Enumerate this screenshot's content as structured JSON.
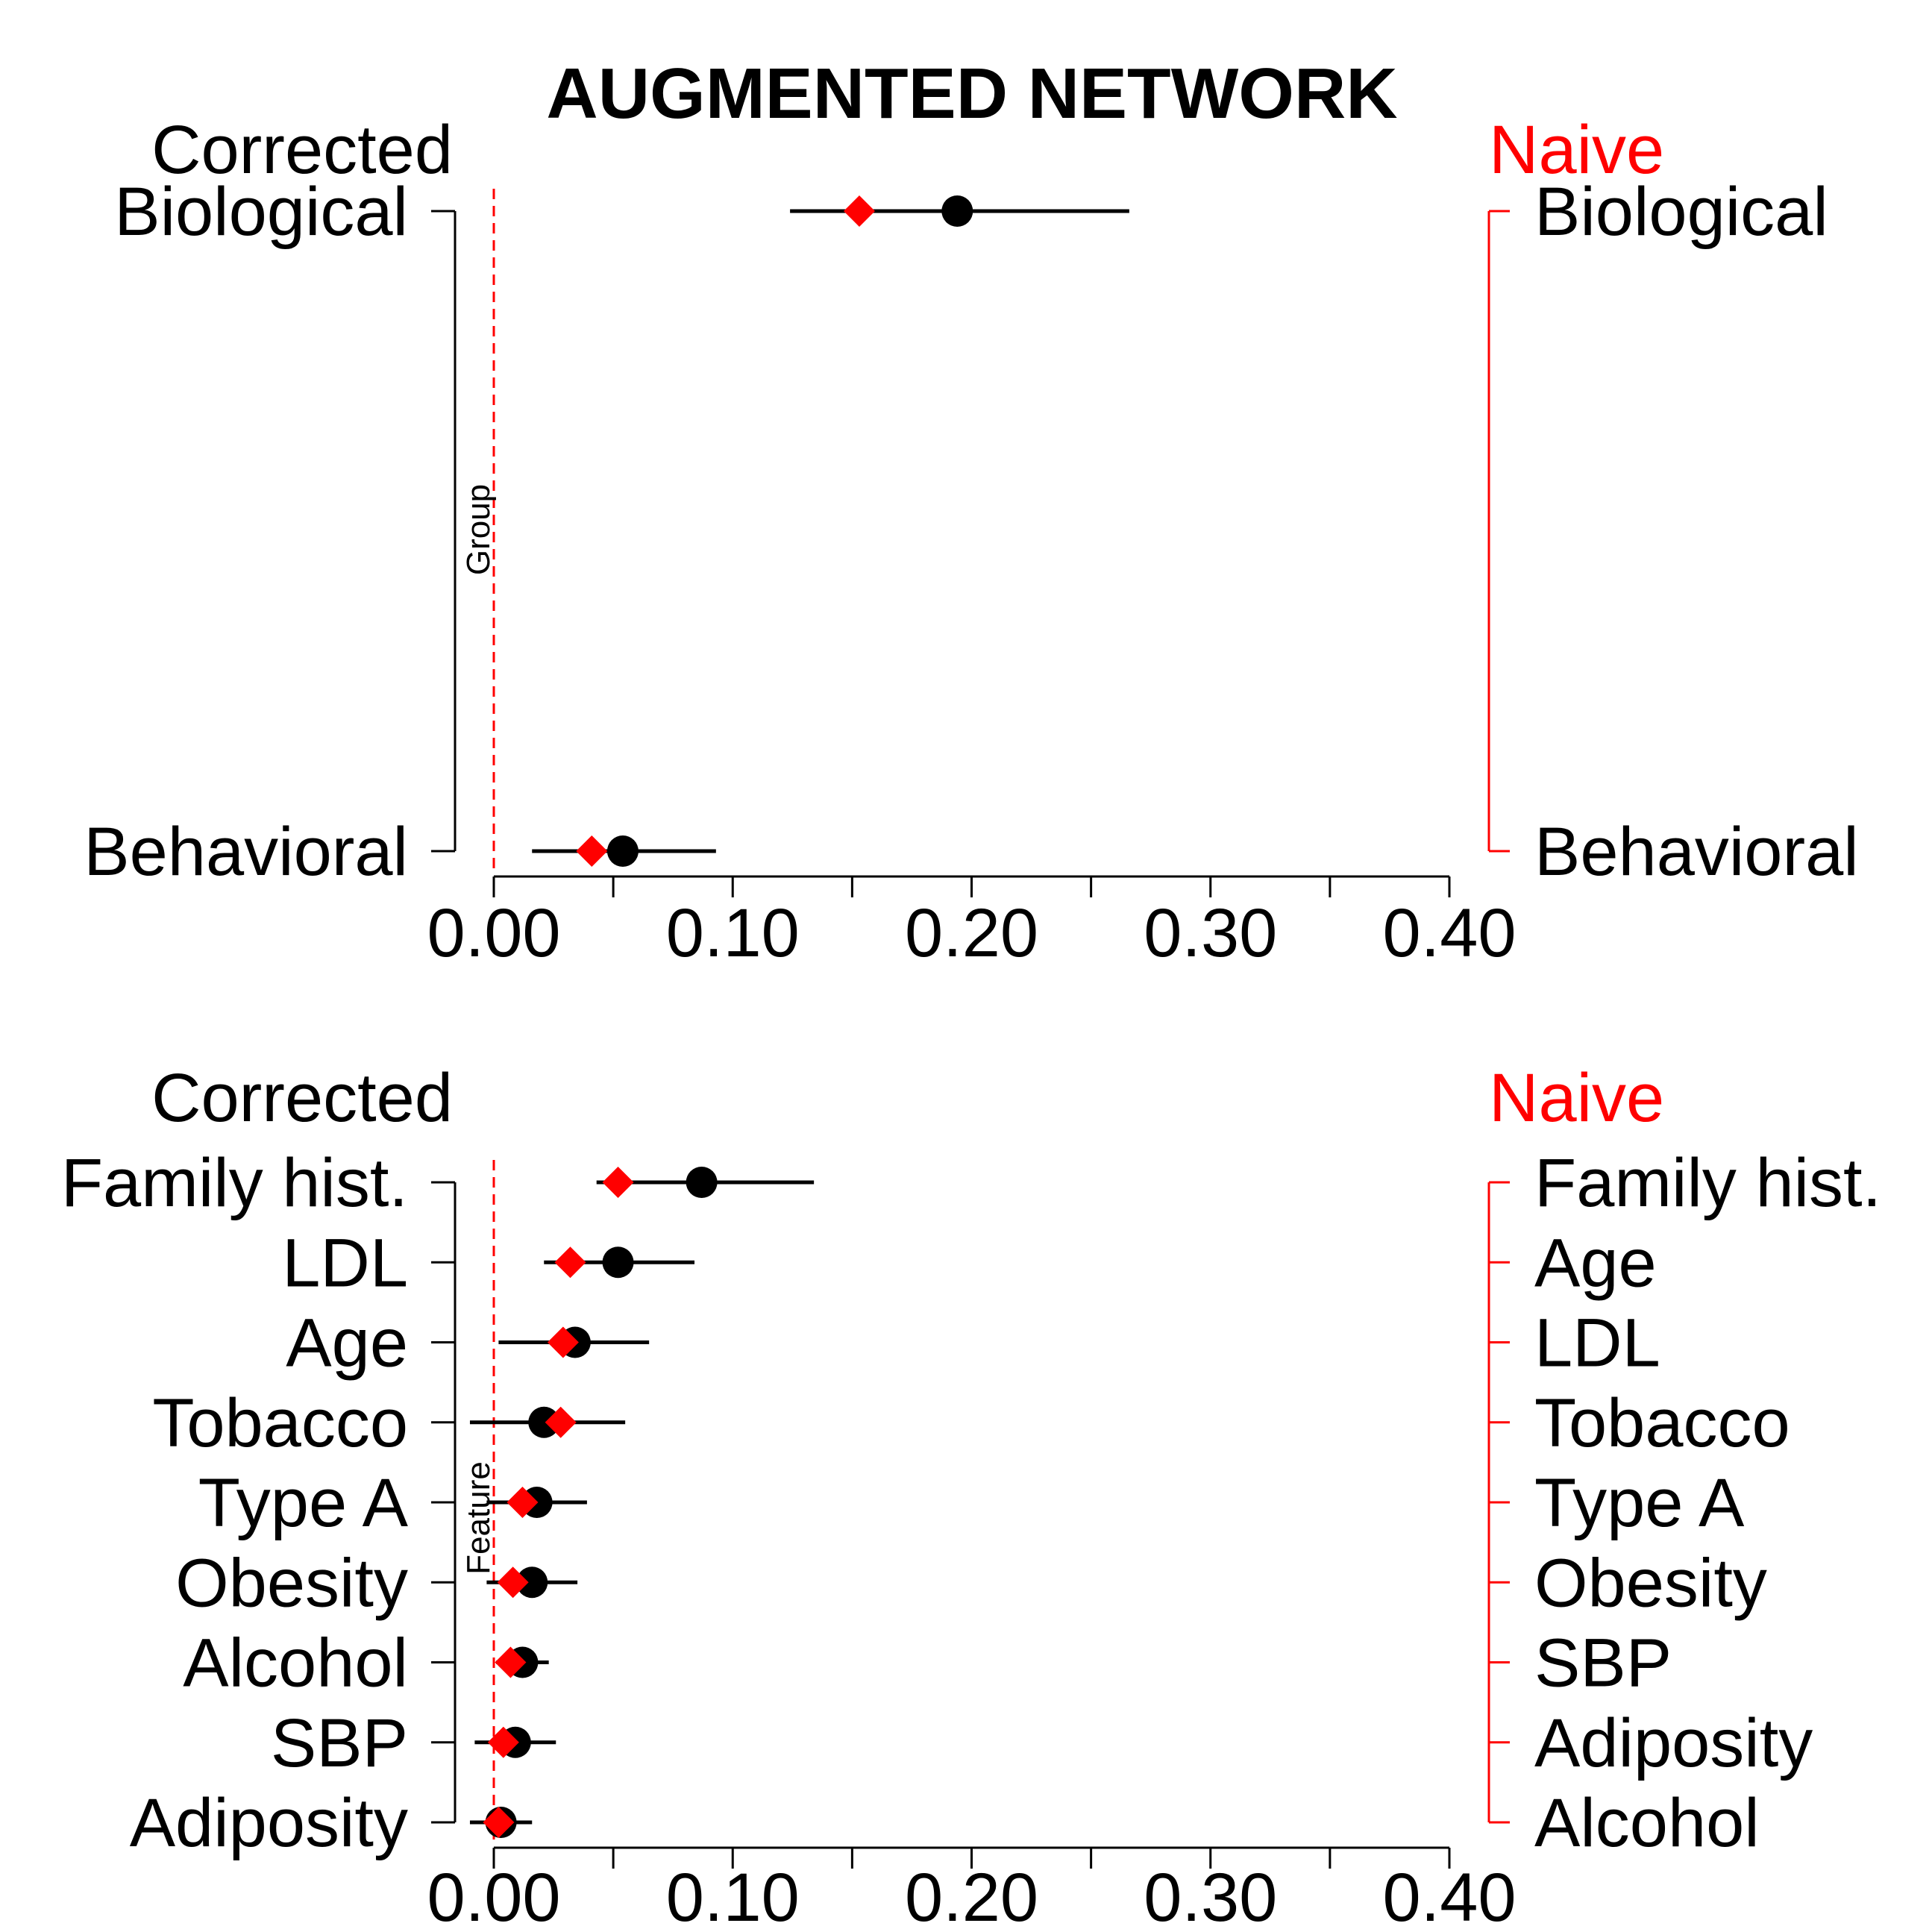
{
  "title": "AUGMENTED NETWORK",
  "colors": {
    "corrected": "#000000",
    "naive": "#ff0000",
    "reference_line": "#ff0000"
  },
  "chart_data": [
    {
      "type": "dot-whisker",
      "panel": "group",
      "left_header": "Corrected",
      "right_header": "Naive",
      "inner_label": "Group",
      "xlim": [
        0,
        0.4
      ],
      "x_ticks": [
        "0.00",
        "0.10",
        "0.20",
        "0.30",
        "0.40"
      ],
      "reference_line_x": 0,
      "left_categories": [
        "Biological",
        "Behavioral"
      ],
      "right_categories": [
        "Biological",
        "Behavioral"
      ],
      "series": [
        {
          "name": "Corrected",
          "marker": "circle",
          "values": [
            0.194,
            0.054
          ],
          "ci_low": [
            0.124,
            0.016
          ],
          "ci_high": [
            0.266,
            0.093
          ]
        },
        {
          "name": "Naive",
          "marker": "diamond",
          "values": [
            0.153,
            0.041
          ]
        }
      ]
    },
    {
      "type": "dot-whisker",
      "panel": "feature",
      "left_header": "Corrected",
      "right_header": "Naive",
      "inner_label": "Feature",
      "xlim": [
        0,
        0.4
      ],
      "x_ticks": [
        "0.00",
        "0.10",
        "0.20",
        "0.30",
        "0.40"
      ],
      "reference_line_x": 0,
      "left_categories": [
        "Family hist.",
        "LDL",
        "Age",
        "Tobacco",
        "Type A",
        "Obesity",
        "Alcohol",
        "SBP",
        "Adiposity"
      ],
      "right_categories": [
        "Family hist.",
        "Age",
        "LDL",
        "Tobacco",
        "Type A",
        "Obesity",
        "SBP",
        "Adiposity",
        "Alcohol"
      ],
      "series": [
        {
          "name": "Corrected",
          "marker": "circle",
          "values": [
            0.087,
            0.052,
            0.034,
            0.021,
            0.018,
            0.016,
            0.012,
            0.009,
            0.003
          ],
          "ci_low": [
            0.043,
            0.021,
            0.002,
            -0.01,
            -0.003,
            -0.003,
            0.001,
            -0.008,
            -0.01
          ],
          "ci_high": [
            0.134,
            0.084,
            0.065,
            0.055,
            0.039,
            0.035,
            0.023,
            0.026,
            0.016
          ]
        },
        {
          "name": "Naive",
          "marker": "diamond",
          "values": [
            0.052,
            0.032,
            0.029,
            0.028,
            0.012,
            0.008,
            0.007,
            0.004,
            0.002
          ]
        }
      ]
    }
  ]
}
